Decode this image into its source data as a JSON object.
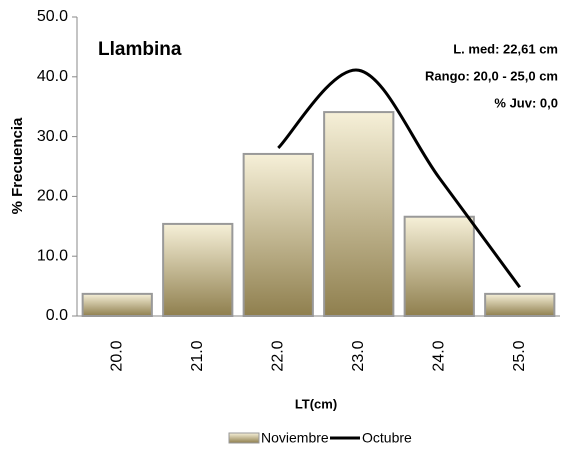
{
  "chart_data": {
    "type": "bar",
    "annotations": [
      "Llambina",
      "L. med: 22,61 cm",
      "Rango: 20,0 - 25,0 cm",
      "% Juv: 0,0"
    ],
    "xlabel": "LT(cm)",
    "ylabel": "% Frecuencia",
    "categories": [
      "20.0",
      "21.0",
      "22.0",
      "23.0",
      "24.0",
      "25.0"
    ],
    "series": [
      {
        "name": "Noviembre",
        "type": "bar",
        "color": "#8f7f4e",
        "values": [
          3.7,
          15.4,
          27.1,
          34.1,
          16.6,
          3.7
        ]
      },
      {
        "name": "Octubre",
        "type": "line",
        "color": "#000000",
        "values": [
          null,
          null,
          28.1,
          41.1,
          23.1,
          4.8
        ]
      }
    ],
    "ylim": [
      0,
      50
    ],
    "yticks": [
      {
        "value": 0,
        "label": "0.0"
      },
      {
        "value": 10,
        "label": "10.0"
      },
      {
        "value": 20,
        "label": "20.0"
      },
      {
        "value": 30,
        "label": "30.0"
      },
      {
        "value": 40,
        "label": "40.0"
      },
      {
        "value": 50,
        "label": "50.0"
      }
    ],
    "legend": "bottom"
  }
}
